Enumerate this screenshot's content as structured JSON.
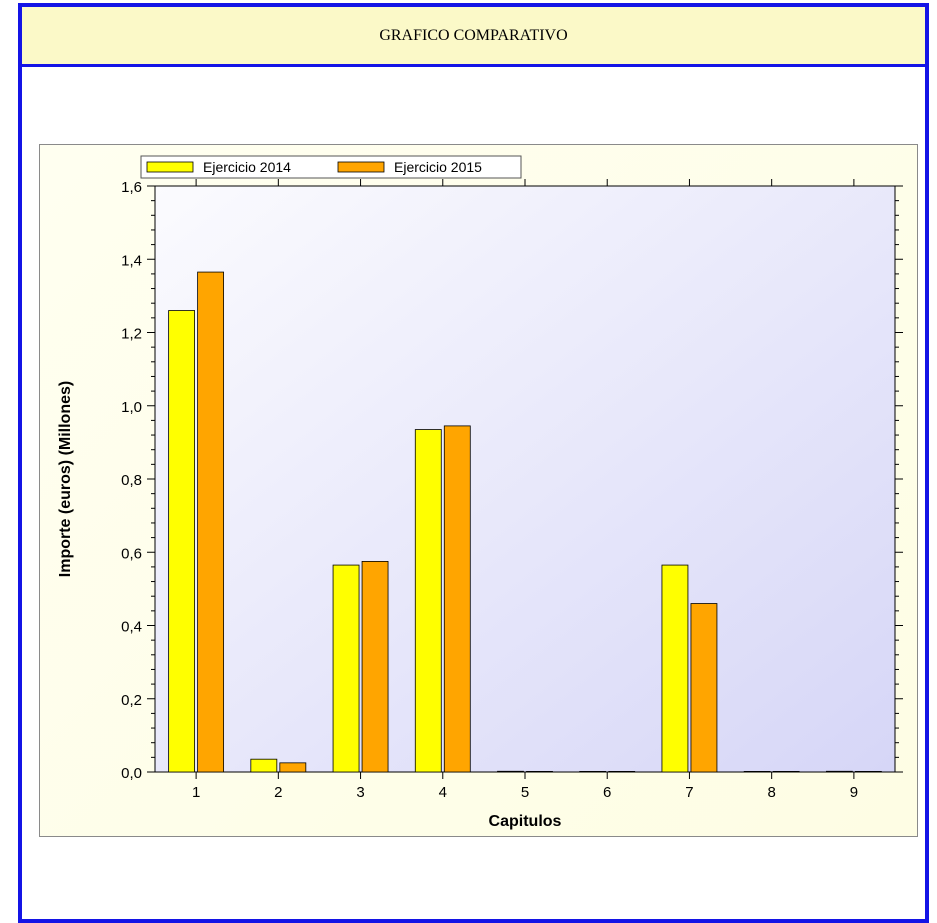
{
  "page": {
    "title": "GRAFICO COMPARATIVO"
  },
  "colors": {
    "frame": "#1414e6",
    "header_bg": "#fbf9c8",
    "series_2014": "#ffff00",
    "series_2015": "#ffa500"
  },
  "chart_data": {
    "type": "bar",
    "title": "",
    "xlabel": "Capitulos",
    "ylabel": "Importe (euros) (Millones)",
    "categories": [
      "1",
      "2",
      "3",
      "4",
      "5",
      "6",
      "7",
      "8",
      "9"
    ],
    "series": [
      {
        "name": "Ejercicio 2014",
        "color": "#ffff00",
        "values": [
          1.26,
          0.035,
          0.565,
          0.935,
          0.002,
          0,
          0.565,
          0,
          0.002
        ]
      },
      {
        "name": "Ejercicio 2015",
        "color": "#ffa500",
        "values": [
          1.365,
          0.025,
          0.575,
          0.945,
          0,
          0,
          0.46,
          0,
          0
        ]
      }
    ],
    "ylim": [
      0,
      1.6
    ],
    "yticks": [
      "0,0",
      "0,2",
      "0,4",
      "0,6",
      "0,8",
      "1,0",
      "1,2",
      "1,4",
      "1,6"
    ],
    "grid": false,
    "legend_position": "top-left"
  }
}
